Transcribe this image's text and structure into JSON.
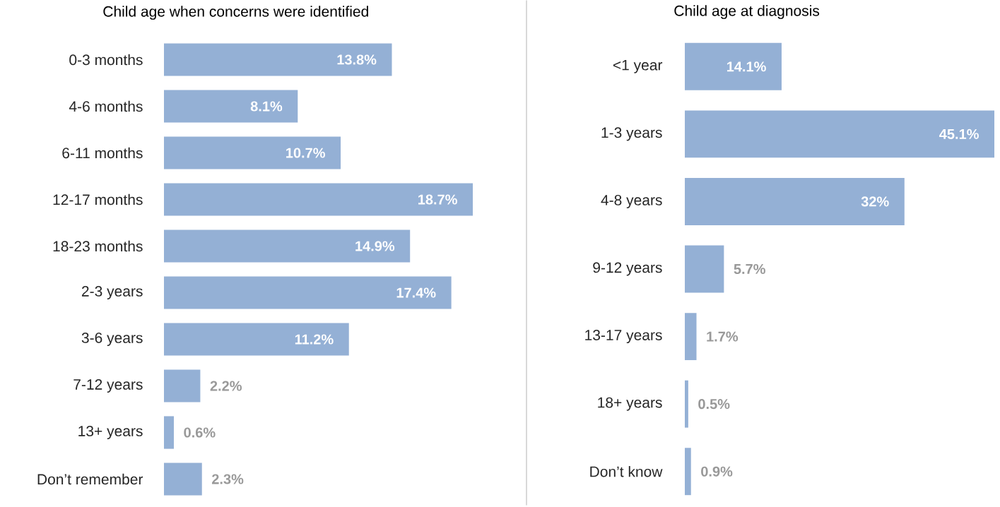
{
  "chart_data": [
    {
      "type": "bar",
      "orientation": "horizontal",
      "title": "Child age when concerns were identified",
      "color": "#94b0d5",
      "tick_labels": "y",
      "categories": [
        "0-3 months",
        "4-6 months",
        "6-11 months",
        "12-17 months",
        "18-23 months",
        "2-3 years",
        "3-6 years",
        "7-12 years",
        "13+ years",
        "Don’t remember"
      ],
      "values": [
        13.8,
        8.1,
        10.7,
        18.7,
        14.9,
        17.4,
        11.2,
        2.2,
        0.6,
        2.3
      ],
      "value_labels": [
        "13.8%",
        "8.1%",
        "10.7%",
        "18.7%",
        "14.9%",
        "17.4%",
        "11.2%",
        "2.2%",
        "0.6%",
        "2.3%"
      ]
    },
    {
      "type": "bar",
      "orientation": "horizontal",
      "title": "Child age at diagnosis",
      "color": "#94b0d5",
      "tick_labels": "y",
      "categories": [
        "<1 year",
        "1-3 years",
        "4-8 years",
        "9-12 years",
        "13-17 years",
        "18+ years",
        "Don’t know"
      ],
      "values": [
        14.1,
        45.1,
        32,
        5.7,
        1.7,
        0.5,
        0.9
      ],
      "value_labels": [
        "14.1%",
        "45.1%",
        "32%",
        "5.7%",
        "1.7%",
        "0.5%",
        "0.9%"
      ]
    }
  ]
}
